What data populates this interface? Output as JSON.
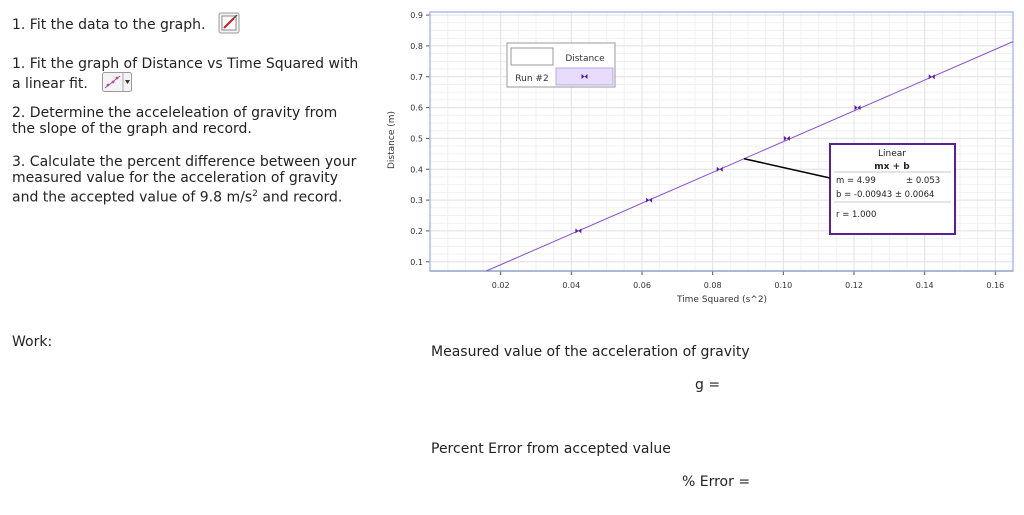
{
  "instructions": {
    "heading": "1.  Fit the data to the graph.",
    "step1": "1. Fit the graph of Distance vs Time Squared with a linear fit.",
    "step2": "2.  Determine the acceleleation of gravity from the slope of the graph and record.",
    "step3_pre": "3.  Calculate the percent difference between your measured value for the acceleration of gravity and the accepted value of 9.8 m/s",
    "step3_sup": "2",
    "step3_post": " and record.",
    "work_label": "Work:"
  },
  "results": {
    "measured_label": "Measured value of the acceleration of gravity",
    "g_label": "g =",
    "percent_label": "Percent Error from accepted value",
    "error_label": "% Error ="
  },
  "icons": {
    "heading_icon": "graph-edit-icon",
    "fit_icon": "linear-fit-icon",
    "legend_marker": "hourglass-marker-icon"
  },
  "chart_data": {
    "type": "scatter",
    "xlabel": "Time Squared (s^2)",
    "ylabel": "Distance (m)",
    "xlim": [
      0.0,
      0.165
    ],
    "ylim": [
      0.07,
      0.91
    ],
    "x_ticks": [
      "0.02",
      "0.04",
      "0.06",
      "0.08",
      "0.10",
      "0.12",
      "0.14",
      "0.16"
    ],
    "y_ticks": [
      "0.1",
      "0.2",
      "0.3",
      "0.4",
      "0.5",
      "0.6",
      "0.7",
      "0.8",
      "0.9"
    ],
    "grid": true,
    "series": [
      {
        "name": "Distance",
        "x": [
          0.042,
          0.062,
          0.082,
          0.101,
          0.121,
          0.142
        ],
        "values": [
          0.2,
          0.3,
          0.4,
          0.5,
          0.6,
          0.7
        ]
      }
    ],
    "fit": {
      "type": "linear",
      "m": 4.99,
      "b": -0.00943,
      "title": "Linear",
      "equation": "mx + b",
      "m_text": "m = 4.99",
      "m_err": "± 0.053",
      "b_text": "b  = -0.00943 ± 0.0064",
      "r_text": "r = 1.000",
      "anchor_x": 0.0889
    },
    "legend": {
      "column_header": "Distance",
      "row_label": "Run #2",
      "placement": "top-left"
    },
    "colors": {
      "fit_line": "#8a4fd1",
      "marker": "#5a1fa0",
      "box_border": "#5a1fa0",
      "frame": "#a7bfe8",
      "grid": "#e3e3e3"
    }
  }
}
